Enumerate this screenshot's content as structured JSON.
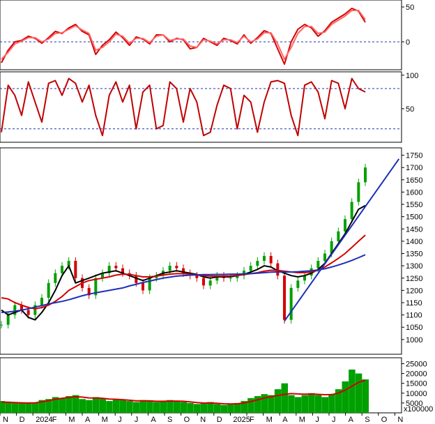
{
  "chart_data": {
    "type": "line",
    "x_labels": [
      "N",
      "D",
      "2024",
      "F",
      "M",
      "A",
      "M",
      "J",
      "J",
      "A",
      "S",
      "O",
      "N",
      "D",
      "2025",
      "F",
      "M",
      "A",
      "M",
      "J",
      "J",
      "A",
      "S",
      "O",
      "N"
    ],
    "panels": [
      {
        "name": "momentum",
        "ylim": [
          -40,
          60
        ],
        "yticks": [
          50,
          0
        ],
        "reference_lines": [
          0
        ],
        "series": [
          {
            "color": "#d40000",
            "values": [
              -30,
              -12,
              0,
              2,
              8,
              5,
              -2,
              6,
              15,
              12,
              20,
              25,
              15,
              10,
              -18,
              -5,
              3,
              14,
              6,
              -5,
              7,
              4,
              -3,
              10,
              10,
              0,
              5,
              3,
              -10,
              -8,
              5,
              0,
              -5,
              5,
              2,
              -3,
              10,
              -2,
              6,
              16,
              12,
              -10,
              -32,
              0,
              18,
              25,
              20,
              8,
              16,
              28,
              34,
              40,
              48,
              44,
              28
            ]
          },
          {
            "color": "#ff6666",
            "values": [
              -25,
              -15,
              -3,
              1,
              6,
              6,
              0,
              4,
              12,
              13,
              18,
              23,
              17,
              12,
              -12,
              -8,
              0,
              11,
              8,
              -2,
              5,
              5,
              -1,
              8,
              10,
              2,
              4,
              4,
              -6,
              -8,
              3,
              1,
              -3,
              3,
              3,
              -1,
              8,
              0,
              4,
              13,
              13,
              -3,
              -25,
              -8,
              12,
              22,
              22,
              12,
              14,
              25,
              31,
              37,
              45,
              45,
              32
            ]
          }
        ]
      },
      {
        "name": "oscillator",
        "ylim": [
          0,
          105
        ],
        "yticks": [
          100,
          50
        ],
        "reference_lines": [
          80,
          20
        ],
        "series": [
          {
            "color": "#c00000",
            "values": [
              15,
              85,
              70,
              40,
              90,
              60,
              30,
              88,
              92,
              70,
              95,
              88,
              60,
              85,
              40,
              10,
              70,
              90,
              60,
              85,
              20,
              75,
              85,
              20,
              25,
              90,
              80,
              30,
              80,
              60,
              10,
              15,
              55,
              85,
              80,
              20,
              70,
              60,
              15,
              60,
              90,
              92,
              88,
              40,
              10,
              85,
              90,
              75,
              35,
              92,
              88,
              50,
              95,
              80,
              75
            ]
          }
        ]
      },
      {
        "name": "price",
        "ylim": [
          940,
          1780
        ],
        "yticks": [
          1750,
          1700,
          1650,
          1600,
          1550,
          1500,
          1450,
          1400,
          1350,
          1300,
          1250,
          1200,
          1150,
          1100,
          1050,
          1000
        ],
        "ohlc": [
          1060,
          1100,
          1140,
          1120,
          1100,
          1140,
          1170,
          1230,
          1270,
          1300,
          1320,
          1250,
          1210,
          1180,
          1250,
          1270,
          1300,
          1290,
          1270,
          1260,
          1230,
          1200,
          1250,
          1260,
          1280,
          1300,
          1290,
          1270,
          1260,
          1250,
          1220,
          1240,
          1260,
          1250,
          1250,
          1260,
          1280,
          1300,
          1320,
          1340,
          1310,
          1260,
          1080,
          1210,
          1240,
          1260,
          1290,
          1320,
          1350,
          1400,
          1440,
          1490,
          1560,
          1640,
          1700
        ],
        "lines": [
          {
            "color": "#000000",
            "values": [
              1120,
              1100,
              1110,
              1120,
              1090,
              1080,
              1110,
              1150,
              1200,
              1260,
              1300,
              1230,
              1240,
              1250,
              1260,
              1270,
              1275,
              1280,
              1270,
              1260,
              1250,
              1240,
              1250,
              1260,
              1270,
              1275,
              1280,
              1275,
              1270,
              1265,
              1255,
              1250,
              1255,
              1255,
              1255,
              1260,
              1265,
              1275,
              1285,
              1300,
              1295,
              1280,
              1270,
              1260,
              1255,
              1260,
              1270,
              1285,
              1310,
              1350,
              1390,
              1430,
              1480,
              1530,
              1545
            ]
          },
          {
            "color": "#d40000",
            "values": [
              1170,
              1165,
              1150,
              1140,
              1130,
              1125,
              1130,
              1140,
              1155,
              1175,
              1200,
              1215,
              1230,
              1240,
              1245,
              1250,
              1255,
              1262,
              1266,
              1265,
              1260,
              1255,
              1255,
              1258,
              1262,
              1266,
              1268,
              1268,
              1266,
              1263,
              1260,
              1258,
              1258,
              1258,
              1259,
              1261,
              1264,
              1268,
              1272,
              1278,
              1282,
              1281,
              1278,
              1275,
              1272,
              1272,
              1275,
              1282,
              1295,
              1312,
              1330,
              1350,
              1375,
              1400,
              1425
            ]
          },
          {
            "color": "#1c2fb8",
            "values": [
              1110,
              1112,
              1115,
              1120,
              1125,
              1132,
              1138,
              1145,
              1150,
              1155,
              1162,
              1170,
              1178,
              1185,
              1190,
              1195,
              1200,
              1205,
              1210,
              1218,
              1225,
              1232,
              1238,
              1244,
              1250,
              1254,
              1258,
              1260,
              1262,
              1263,
              1264,
              1264,
              1265,
              1265,
              1266,
              1266,
              1267,
              1268,
              1270,
              1272,
              1274,
              1275,
              1275,
              1275,
              1276,
              1278,
              1280,
              1283,
              1288,
              1295,
              1303,
              1312,
              1322,
              1333,
              1345
            ]
          }
        ],
        "trendline": {
          "color": "#1c2fb8",
          "start": [
            42,
            1075
          ],
          "end": [
            59,
            1735
          ]
        }
      },
      {
        "name": "volume",
        "ylim": [
          0,
          28000
        ],
        "yticks": [
          25000,
          20000,
          15000,
          10000,
          5000
        ],
        "unit_label": "x100000",
        "bars": [
          6000,
          5500,
          5000,
          5200,
          4800,
          5000,
          6500,
          7000,
          8000,
          7500,
          8500,
          9000,
          7000,
          6500,
          8000,
          7500,
          6000,
          7000,
          6500,
          6000,
          5500,
          6500,
          6000,
          5500,
          6000,
          6500,
          6000,
          5500,
          5000,
          4500,
          5000,
          5500,
          4500,
          4000,
          4500,
          5000,
          6000,
          7500,
          8500,
          9500,
          9000,
          12000,
          15000,
          9000,
          8000,
          9000,
          10000,
          9000,
          8000,
          9500,
          12000,
          16000,
          22000,
          20000,
          17000
        ],
        "ma": {
          "color": "#d40000",
          "values": [
            5500,
            5400,
            5200,
            5100,
            5000,
            5100,
            5600,
            6200,
            6900,
            7400,
            7800,
            8200,
            8000,
            7600,
            7500,
            7400,
            7000,
            6900,
            6700,
            6400,
            6100,
            6100,
            6100,
            5900,
            5900,
            6000,
            6000,
            5900,
            5600,
            5200,
            5000,
            5000,
            4900,
            4600,
            4500,
            4600,
            5000,
            5700,
            6600,
            7500,
            8200,
            8800,
            9400,
            9800,
            9600,
            9500,
            9600,
            9400,
            9200,
            9300,
            10000,
            11500,
            13500,
            15500,
            16500
          ]
        }
      }
    ]
  }
}
